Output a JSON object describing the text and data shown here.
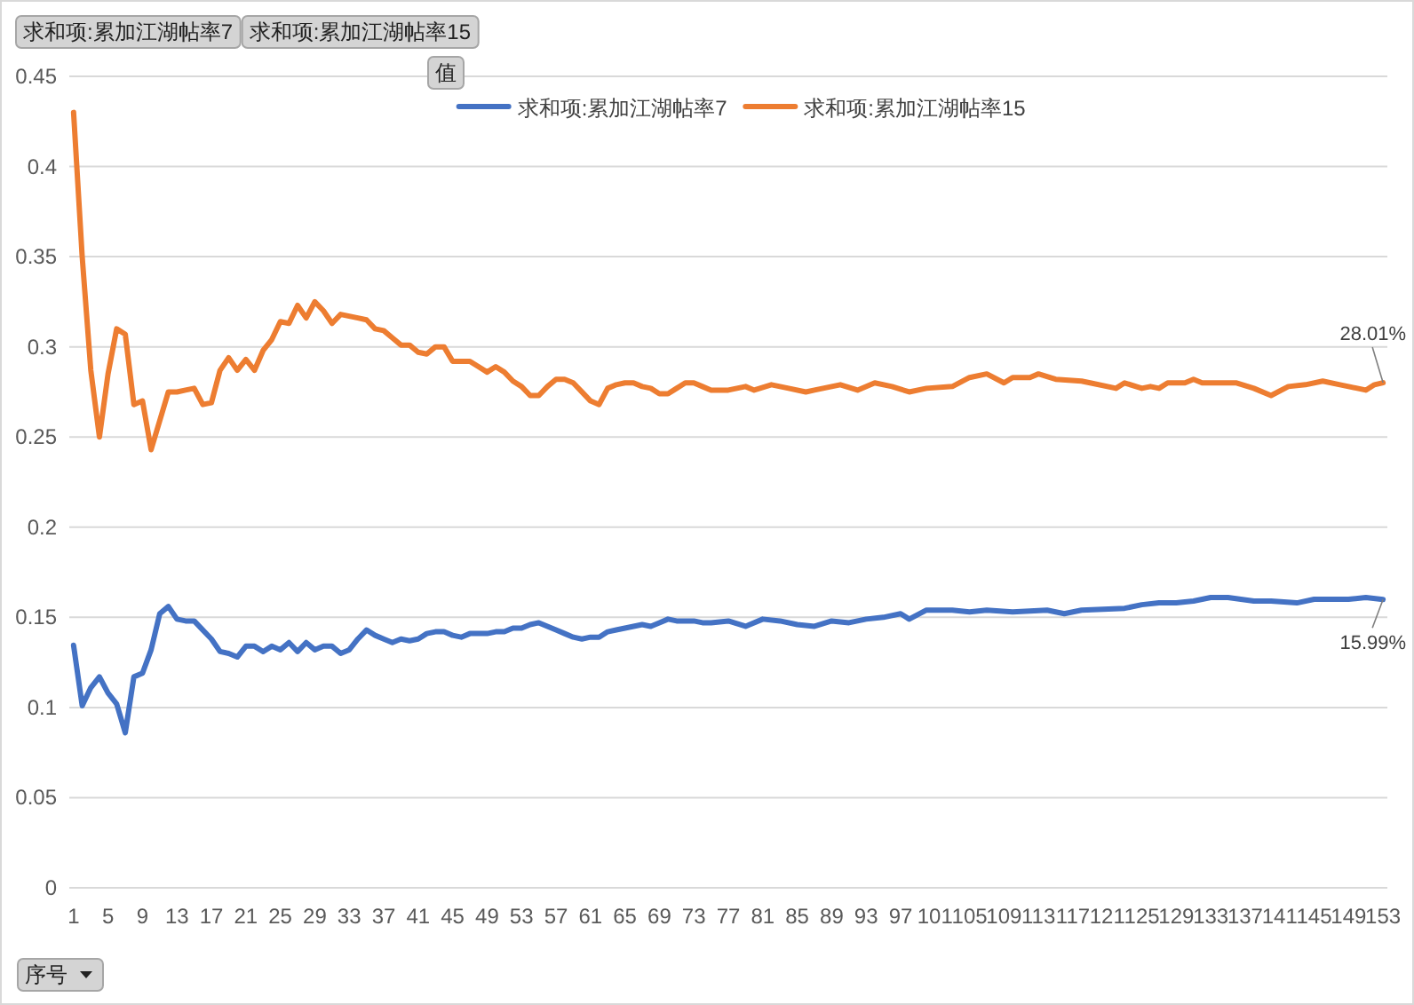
{
  "chart_data": {
    "type": "line",
    "xlim": [
      0.5,
      153.5
    ],
    "ylim": [
      0,
      0.45
    ],
    "xticks": [
      1,
      5,
      9,
      13,
      17,
      21,
      25,
      29,
      33,
      37,
      41,
      45,
      49,
      53,
      57,
      61,
      65,
      69,
      73,
      77,
      81,
      85,
      89,
      93,
      97,
      101,
      105,
      109,
      113,
      117,
      121,
      125,
      129,
      133,
      137,
      141,
      145,
      149,
      153
    ],
    "yticks": [
      0,
      0.05,
      0.1,
      0.15,
      0.2,
      0.25,
      0.3,
      0.35,
      0.4,
      0.45
    ],
    "grid": "y",
    "legend": "top",
    "marker": "none",
    "line_style": "solid",
    "series": [
      {
        "name": "求和项:累加江湖帖率7",
        "color": "#4472c4",
        "x": [
          1,
          2,
          3,
          4,
          5,
          6,
          7,
          8,
          9,
          10,
          11,
          12,
          13,
          14,
          15,
          16,
          17,
          18,
          19,
          20,
          21,
          22,
          23,
          24,
          25,
          26,
          27,
          28,
          29,
          30,
          31,
          32,
          33,
          34,
          35,
          36,
          37,
          38,
          39,
          40,
          41,
          42,
          43,
          44,
          45,
          46,
          47,
          48,
          49,
          50,
          51,
          52,
          53,
          54,
          55,
          56,
          57,
          58,
          59,
          60,
          61,
          62,
          63,
          64,
          65,
          66,
          67,
          68,
          69,
          70,
          71,
          72,
          73,
          74,
          75,
          77,
          79,
          81,
          83,
          85,
          87,
          89,
          91,
          93,
          95,
          97,
          98,
          100,
          103,
          105,
          107,
          110,
          114,
          116,
          118,
          123,
          125,
          127,
          129,
          131,
          133,
          135,
          138,
          140,
          143,
          145,
          149,
          151,
          153
        ],
        "values": [
          0.1345,
          0.101,
          0.111,
          0.117,
          0.108,
          0.102,
          0.086,
          0.117,
          0.119,
          0.132,
          0.152,
          0.156,
          0.149,
          0.148,
          0.148,
          0.143,
          0.138,
          0.131,
          0.13,
          0.128,
          0.134,
          0.134,
          0.131,
          0.134,
          0.132,
          0.136,
          0.131,
          0.136,
          0.132,
          0.134,
          0.134,
          0.13,
          0.132,
          0.138,
          0.143,
          0.14,
          0.138,
          0.136,
          0.138,
          0.137,
          0.138,
          0.141,
          0.142,
          0.142,
          0.14,
          0.139,
          0.141,
          0.141,
          0.141,
          0.142,
          0.142,
          0.144,
          0.144,
          0.146,
          0.147,
          0.145,
          0.143,
          0.141,
          0.139,
          0.138,
          0.139,
          0.139,
          0.142,
          0.143,
          0.144,
          0.145,
          0.146,
          0.145,
          0.147,
          0.149,
          0.148,
          0.148,
          0.148,
          0.147,
          0.147,
          0.148,
          0.145,
          0.149,
          0.148,
          0.146,
          0.145,
          0.148,
          0.147,
          0.149,
          0.15,
          0.152,
          0.149,
          0.154,
          0.154,
          0.153,
          0.154,
          0.153,
          0.154,
          0.152,
          0.154,
          0.155,
          0.157,
          0.158,
          0.158,
          0.159,
          0.161,
          0.161,
          0.159,
          0.159,
          0.158,
          0.16,
          0.16,
          0.161,
          0.1599
        ]
      },
      {
        "name": "求和项:累加江湖帖率15",
        "color": "#ed7d31",
        "x": [
          1,
          2,
          3,
          4,
          5,
          6,
          7,
          8,
          9,
          10,
          11,
          12,
          13,
          14,
          15,
          16,
          17,
          18,
          19,
          20,
          21,
          22,
          23,
          24,
          25,
          26,
          27,
          28,
          29,
          30,
          31,
          32,
          33,
          34,
          35,
          36,
          37,
          38,
          39,
          40,
          41,
          42,
          43,
          44,
          45,
          46,
          47,
          48,
          49,
          50,
          51,
          52,
          53,
          54,
          55,
          56,
          57,
          58,
          59,
          60,
          61,
          62,
          63,
          64,
          65,
          66,
          67,
          68,
          69,
          70,
          71,
          72,
          73,
          74,
          75,
          77,
          79,
          80,
          82,
          84,
          86,
          87,
          90,
          92,
          94,
          96,
          98,
          100,
          103,
          105,
          107,
          109,
          110,
          112,
          113,
          115,
          118,
          119,
          122,
          123,
          125,
          126,
          127,
          128,
          130,
          131,
          132,
          136,
          138,
          140,
          142,
          144,
          146,
          148,
          149,
          151,
          152,
          153
        ],
        "values": [
          0.43,
          0.35,
          0.287,
          0.25,
          0.285,
          0.31,
          0.307,
          0.268,
          0.27,
          0.243,
          0.259,
          0.275,
          0.275,
          0.276,
          0.277,
          0.268,
          0.269,
          0.287,
          0.294,
          0.287,
          0.293,
          0.287,
          0.298,
          0.304,
          0.314,
          0.313,
          0.323,
          0.316,
          0.325,
          0.32,
          0.313,
          0.318,
          0.317,
          0.316,
          0.315,
          0.31,
          0.309,
          0.305,
          0.301,
          0.301,
          0.297,
          0.296,
          0.3,
          0.3,
          0.292,
          0.292,
          0.292,
          0.289,
          0.286,
          0.289,
          0.286,
          0.281,
          0.278,
          0.273,
          0.273,
          0.278,
          0.282,
          0.282,
          0.28,
          0.275,
          0.27,
          0.268,
          0.277,
          0.279,
          0.28,
          0.28,
          0.278,
          0.277,
          0.274,
          0.274,
          0.277,
          0.28,
          0.28,
          0.278,
          0.276,
          0.276,
          0.278,
          0.276,
          0.279,
          0.277,
          0.275,
          0.276,
          0.279,
          0.276,
          0.28,
          0.278,
          0.275,
          0.277,
          0.278,
          0.283,
          0.285,
          0.28,
          0.283,
          0.283,
          0.285,
          0.282,
          0.281,
          0.28,
          0.277,
          0.28,
          0.277,
          0.278,
          0.277,
          0.28,
          0.28,
          0.282,
          0.28,
          0.28,
          0.277,
          0.273,
          0.278,
          0.279,
          0.281,
          0.279,
          0.278,
          0.276,
          0.279,
          0.2801
        ]
      }
    ],
    "annotations": [
      "求和项:累加江湖帖率7",
      "求和项:累加江湖帖率15",
      "值",
      "序号",
      {
        "text": "28.01%",
        "x": 153,
        "y": 0.2801
      },
      {
        "text": "15.99%",
        "x": 153,
        "y": 0.1599
      }
    ]
  }
}
